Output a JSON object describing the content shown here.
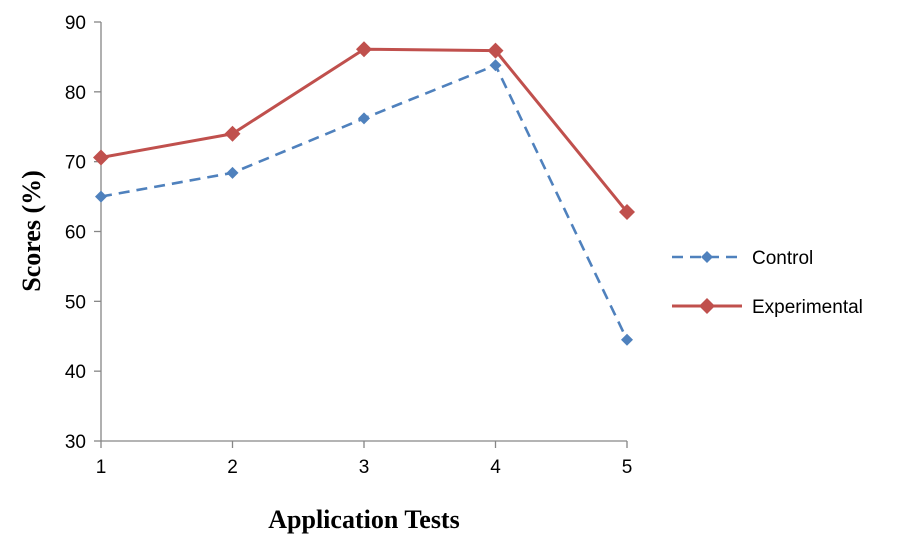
{
  "chart_data": {
    "type": "line",
    "title": "",
    "xlabel": "Application Tests",
    "ylabel": "Scores (%)",
    "categories": [
      "1",
      "2",
      "3",
      "4",
      "5"
    ],
    "ylim": [
      30,
      90
    ],
    "yticks": [
      "30",
      "40",
      "50",
      "60",
      "70",
      "80",
      "90"
    ],
    "grid": false,
    "legend_position": "right",
    "series": [
      {
        "name": "Control",
        "color": "#4F81BD",
        "line_style": "dashed",
        "marker": "diamond",
        "values": [
          65.0,
          68.4,
          76.2,
          83.8,
          44.5
        ]
      },
      {
        "name": "Experimental",
        "color": "#C0504D",
        "line_style": "solid",
        "marker": "diamond",
        "values": [
          70.6,
          74.0,
          86.1,
          85.9,
          62.8
        ]
      }
    ]
  }
}
